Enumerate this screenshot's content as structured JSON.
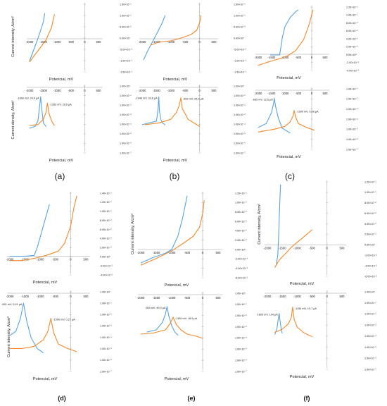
{
  "colors": {
    "blue": "#5ba3dc",
    "orange": "#ee8a2f",
    "axis": "#9a9a9a",
    "text": "#222222"
  },
  "panel_labels": [
    "(a)",
    "(b)",
    "(c)",
    "(d)",
    "(e)",
    "(f)"
  ],
  "chart_data": [
    {
      "panel": "(a)",
      "kind": "intensity",
      "type": "line",
      "ylabel": "Current intensity, A/cm²",
      "xlabel": "Potencial, mV",
      "xticks": [
        "-2000",
        "-1500",
        "-1000",
        "-500",
        "0",
        "500"
      ],
      "yticks": [
        "1.50×10⁻¹",
        "1.00×10⁻¹",
        "5.00×10⁻²",
        "0.00×10⁰",
        "-5.00×10⁻²",
        "-1.00×10⁻¹",
        "-1.50×10⁻¹"
      ],
      "xlim": [
        -2000,
        500
      ],
      "ylim": [
        -0.15,
        0.15
      ],
      "series": [
        {
          "color": "blue",
          "x": [
            -2000,
            -1900,
            -1800,
            -1700,
            -1600,
            -1500,
            -1450
          ],
          "y": [
            -0.105,
            -0.07,
            -0.035,
            0.0,
            0.04,
            0.08,
            0.12
          ]
        },
        {
          "color": "orange",
          "x": [
            -2000,
            -1800,
            -1600,
            -1400,
            -1300,
            -1200,
            -1150,
            -1100
          ],
          "y": [
            -0.11,
            -0.075,
            -0.04,
            -0.005,
            0.025,
            0.055,
            0.085,
            0.115
          ]
        }
      ]
    },
    {
      "panel": "(a)",
      "kind": "density",
      "type": "line",
      "ylabel": "Current density, A/cm²",
      "xlabel": "Potencial, mV",
      "xticks": [
        "-2000",
        "-1500",
        "-1000",
        "-500",
        "0",
        "500"
      ],
      "yticks": [
        "1.00×10⁰",
        "1.00×10⁻¹",
        "1.00×10⁻²",
        "1.00×10⁻³",
        "1.00×10⁻⁴",
        "1.00×10⁻⁵",
        "1.00×10⁻⁶",
        "1.00×10⁻⁷"
      ],
      "xlim": [
        -2000,
        500
      ],
      "ylim": [
        0,
        7
      ],
      "annotations": [
        "-1600 mV, 24,4 µA",
        "-1353 mV, 29,5 µA"
      ],
      "series": [
        {
          "color": "blue",
          "x": [
            -2000,
            -1800,
            -1700,
            -1650,
            -1600,
            -1550,
            -1500,
            -1400
          ],
          "y": [
            2.6,
            2.8,
            3.4,
            4.6,
            6.1,
            4.6,
            3.2,
            2.8
          ]
        },
        {
          "color": "orange",
          "x": [
            -2000,
            -1700,
            -1500,
            -1400,
            -1353,
            -1300,
            -1200,
            -1100
          ],
          "y": [
            2.9,
            3.0,
            3.6,
            4.4,
            5.4,
            4.3,
            3.4,
            2.9
          ]
        }
      ]
    },
    {
      "panel": "(b)",
      "kind": "intensity",
      "type": "line",
      "ylabel": "Current intensity, A/cm²",
      "xlabel": "Potencial, mV",
      "xticks": [
        "-2000",
        "-1500",
        "-1000",
        "-500",
        "0",
        "500"
      ],
      "yticks": [
        "1.50×10⁻¹",
        "1.00×10⁻¹",
        "5.00×10⁻²",
        "0.00×10⁰",
        "-5.00×10⁻²",
        "-1.00×10⁻¹",
        "-1.50×10⁻¹"
      ],
      "xlim": [
        -2000,
        500
      ],
      "ylim": [
        -0.15,
        0.15
      ],
      "series": [
        {
          "color": "blue",
          "x": [
            -1950,
            -1800,
            -1600,
            -1450,
            -1300,
            -1200
          ],
          "y": [
            -0.1,
            -0.055,
            -0.005,
            0.035,
            0.075,
            0.11
          ]
        },
        {
          "color": "orange",
          "x": [
            -1700,
            -1400,
            -1000,
            -600,
            -300,
            -100,
            0,
            50
          ],
          "y": [
            -0.03,
            -0.015,
            -0.01,
            0.005,
            0.02,
            0.04,
            0.075,
            0.11
          ]
        }
      ]
    },
    {
      "panel": "(b)",
      "kind": "density",
      "type": "line",
      "ylabel": "",
      "xlabel": "Potencial, mV",
      "xticks": [
        "-2000",
        "-1500",
        "-1000",
        "-500",
        "0",
        "500"
      ],
      "yticks": [
        "1.00×10⁰",
        "1.00×10⁻¹",
        "1.00×10⁻²",
        "1.00×10⁻³",
        "1.00×10⁻⁴",
        "1.00×10⁻⁵",
        "1.00×10⁻⁶",
        "1.00×10⁻⁷"
      ],
      "xlim": [
        -2000,
        500
      ],
      "ylim": [
        0,
        7
      ],
      "annotations": [
        "-1946 mV, 33,6 µA",
        "-652 mV, 25,9 µA"
      ],
      "series": [
        {
          "color": "blue",
          "x": [
            -2000,
            -1500,
            -1450,
            -1420,
            -1400,
            -1350,
            -1300,
            -1200
          ],
          "y": [
            3.0,
            3.4,
            4.6,
            6.1,
            4.6,
            3.6,
            3.2,
            3.0
          ]
        },
        {
          "color": "orange",
          "x": [
            -1900,
            -1400,
            -1000,
            -800,
            -700,
            -652,
            -600,
            -400,
            -100,
            0
          ],
          "y": [
            3.0,
            3.2,
            3.6,
            4.4,
            5.2,
            6.0,
            4.8,
            3.6,
            3.0,
            2.8
          ]
        }
      ]
    },
    {
      "panel": "(c)",
      "kind": "intensity",
      "type": "line",
      "ylabel": "",
      "xlabel": "Potencial, mV",
      "xticks": [
        "-2000",
        "-1500",
        "-1000",
        "-500",
        "0",
        "500"
      ],
      "yticks": [
        "1.20×10⁻¹",
        "1.00×10⁻¹",
        "8.00×10⁻²",
        "6.00×10⁻²",
        "4.00×10⁻²",
        "2.00×10⁻²",
        "0.00×10⁰",
        "-2.00×10⁻²",
        "-4.00×10⁻²"
      ],
      "xlim": [
        -2000,
        500
      ],
      "ylim": [
        -0.04,
        0.12
      ],
      "series": [
        {
          "color": "blue",
          "x": [
            -1550,
            -1200,
            -1150,
            -1100,
            -1000,
            -800,
            -600,
            -500
          ],
          "y": [
            -0.002,
            -0.002,
            0.02,
            0.045,
            0.075,
            0.1,
            0.115,
            0.12
          ]
        },
        {
          "color": "orange",
          "x": [
            -2000,
            -1800,
            -1500,
            -1200,
            -900,
            -600,
            -300,
            -100,
            50
          ],
          "y": [
            -0.03,
            -0.025,
            -0.018,
            -0.012,
            -0.004,
            0.01,
            0.04,
            0.08,
            0.12
          ]
        }
      ]
    },
    {
      "panel": "(c)",
      "kind": "density",
      "type": "line",
      "ylabel": "",
      "xlabel": "Potencial, mV",
      "xticks": [
        "-2000",
        "-1500",
        "-1000",
        "-500",
        "0",
        "500"
      ],
      "yticks": [
        "1.00×10⁻¹",
        "1.00×10⁻²",
        "1.00×10⁻³",
        "1.00×10⁻⁴",
        "1.00×10⁻⁵",
        "1.00×10⁻⁶",
        "1.00×10⁻⁷"
      ],
      "xlim": [
        -2000,
        500
      ],
      "ylim": [
        0,
        6
      ],
      "annotations": [
        "-655 mV, 12,5 µA",
        "-1399 mV, 0,08 µA"
      ],
      "series": [
        {
          "color": "blue",
          "x": [
            -2000,
            -1700,
            -1500,
            -1420,
            -1399,
            -1350,
            -1250,
            -1100,
            -800
          ],
          "y": [
            2.2,
            2.6,
            3.8,
            4.8,
            5.3,
            4.4,
            3.2,
            2.1,
            1.6
          ]
        },
        {
          "color": "orange",
          "x": [
            -2000,
            -1400,
            -1000,
            -800,
            -700,
            -655,
            -600,
            -500,
            -200,
            100
          ],
          "y": [
            1.7,
            2.0,
            2.3,
            2.8,
            3.4,
            4.0,
            3.3,
            2.6,
            2.2,
            1.9
          ]
        }
      ]
    },
    {
      "panel": "(d)",
      "kind": "intensity",
      "type": "line",
      "ylabel": "",
      "xlabel": "Potencial, mV",
      "xticks": [
        "-2000",
        "-1500",
        "-1000",
        "-500",
        "0",
        "500"
      ],
      "yticks": [
        "1.40×10⁻¹",
        "1.20×10⁻¹",
        "1.00×10⁻¹",
        "8.00×10⁻²",
        "6.00×10⁻²",
        "4.00×10⁻²",
        "2.00×10⁻²",
        "0.00×10⁰",
        "-2.00×10⁻²",
        "-4.00×10⁻²"
      ],
      "xlim": [
        -2000,
        500
      ],
      "ylim": [
        -0.04,
        0.14
      ],
      "series": [
        {
          "color": "blue",
          "x": [
            -2000,
            -1700,
            -1500,
            -1200,
            -1100,
            -1000,
            -900,
            -800,
            -700
          ],
          "y": [
            0.0,
            0.0,
            0.0,
            0.002,
            0.02,
            0.045,
            0.07,
            0.095,
            0.12
          ]
        },
        {
          "color": "orange",
          "x": [
            -2000,
            -1900,
            -1600,
            -1200,
            -800,
            -400,
            -200,
            0,
            100,
            200
          ],
          "y": [
            -0.01,
            -0.01,
            -0.01,
            -0.005,
            0.002,
            0.012,
            0.03,
            0.07,
            0.11,
            0.14
          ]
        }
      ]
    },
    {
      "panel": "(d)",
      "kind": "density",
      "type": "line",
      "ylabel": "Current intensity, A/cm²",
      "xlabel": "Potencial, mV",
      "xticks": [
        "-2000",
        "-1500",
        "-1000",
        "-500",
        "0",
        "500"
      ],
      "yticks": [
        "1.00×10⁰",
        "1.00×10⁻¹",
        "1.00×10⁻²",
        "1.00×10⁻³",
        "1.00×10⁻⁴",
        "1.00×10⁻⁵",
        "1.00×10⁻⁶",
        "1.00×10⁻⁷"
      ],
      "xlim": [
        -2000,
        500
      ],
      "ylim": [
        0,
        7
      ],
      "annotations": [
        "-651 mV, 9,91 µA",
        "-1550 mV, 0,27 µA"
      ],
      "series": [
        {
          "color": "blue",
          "x": [
            -2000,
            -1800,
            -1650,
            -1550,
            -1450,
            -1300,
            -1100,
            -900
          ],
          "y": [
            3.2,
            3.6,
            4.8,
            6.2,
            4.6,
            3.0,
            2.0,
            1.6
          ]
        },
        {
          "color": "orange",
          "x": [
            -2000,
            -1600,
            -1200,
            -900,
            -751,
            -651,
            -550,
            -400,
            -100,
            200
          ],
          "y": [
            2.0,
            2.0,
            2.2,
            2.8,
            3.6,
            4.8,
            3.4,
            2.4,
            2.0,
            1.7
          ]
        }
      ]
    },
    {
      "panel": "(e)",
      "kind": "intensity",
      "type": "line",
      "ylabel": "Current intensity, A/cm²",
      "xlabel": "Potencial, mV",
      "xticks": [
        "-2000",
        "-1500",
        "-1000",
        "-500",
        "0",
        "500"
      ],
      "yticks": [
        "1.20×10⁻¹",
        "1.00×10⁻¹",
        "8.00×10⁻²",
        "6.00×10⁻²",
        "4.00×10⁻²",
        "2.00×10⁻²",
        "0.00×10⁰",
        "-2.00×10⁻²",
        "-4.00×10⁻²",
        "-6.00×10⁻²"
      ],
      "xlim": [
        -2000,
        500
      ],
      "ylim": [
        -0.06,
        0.12
      ],
      "series": [
        {
          "color": "blue",
          "x": [
            -2000,
            -1600,
            -1200,
            -1000,
            -800,
            -650,
            -500
          ],
          "y": [
            -0.03,
            -0.018,
            -0.008,
            0.0,
            0.03,
            0.07,
            0.12
          ]
        },
        {
          "color": "orange",
          "x": [
            -2000,
            -1500,
            -1000,
            -600,
            -300,
            -100,
            0,
            50
          ],
          "y": [
            -0.035,
            -0.02,
            -0.003,
            0.015,
            0.03,
            0.05,
            0.08,
            0.11
          ]
        }
      ]
    },
    {
      "panel": "(e)",
      "kind": "density",
      "type": "line",
      "ylabel": "",
      "xlabel": "Potencial, mV",
      "xticks": [
        "-2000",
        "-1500",
        "-1000",
        "-500",
        "0",
        "500"
      ],
      "yticks": [
        "1.00×10⁰",
        "1.00×10⁻¹",
        "1.00×10⁻²",
        "1.00×10⁻³",
        "1.00×10⁻⁴",
        "1.00×10⁻⁵",
        "1.00×10⁻⁶",
        "1.00×10⁻⁷"
      ],
      "xlim": [
        -2000,
        500
      ],
      "ylim": [
        0,
        7
      ],
      "annotations": [
        "-954 mV, 49,0 µA",
        "-1150 mV, 18,9 µA"
      ],
      "series": [
        {
          "color": "blue",
          "x": [
            -1800,
            -1500,
            -1300,
            -1200,
            -1150,
            -1100,
            -1000,
            -900,
            -800
          ],
          "y": [
            3.6,
            3.8,
            4.5,
            5.3,
            6.0,
            5.2,
            4.2,
            3.6,
            3.3
          ]
        },
        {
          "color": "orange",
          "x": [
            -2000,
            -1600,
            -1200,
            -1050,
            -954,
            -850,
            -700,
            -500,
            -200,
            0
          ],
          "y": [
            3.4,
            3.5,
            3.8,
            4.4,
            5.0,
            4.3,
            3.8,
            3.4,
            3.2,
            3.0
          ]
        }
      ]
    },
    {
      "panel": "(f)",
      "kind": "intensity",
      "type": "line",
      "ylabel": "Current intensity, A/cm²",
      "xlabel": "Potencial, mV",
      "xticks": [
        "-2000",
        "-1500",
        "-1000",
        "-500",
        "0",
        "500"
      ],
      "yticks": [
        "1.20×10⁻¹",
        "1.00×10⁻¹",
        "8.00×10⁻²",
        "6.00×10⁻²",
        "4.00×10⁻²",
        "2.00×10⁻²",
        "0.00×10⁰",
        "-2.00×10⁻²",
        "-4.00×10⁻²",
        "-6.00×10⁻²"
      ],
      "xlim": [
        -2000,
        500
      ],
      "ylim": [
        -0.06,
        0.12
      ],
      "series": [
        {
          "color": "blue",
          "x": [
            -1700,
            -1650,
            -1620,
            -1600,
            -1580,
            -1560
          ],
          "y": [
            -0.04,
            -0.02,
            0.02,
            0.06,
            0.09,
            0.12
          ]
        },
        {
          "color": "orange",
          "x": [
            -1750,
            -1600,
            -1400,
            -1200,
            -1000,
            -800,
            -600,
            -500
          ],
          "y": [
            -0.045,
            -0.03,
            -0.018,
            -0.005,
            0.005,
            0.015,
            0.025,
            0.03
          ]
        }
      ]
    },
    {
      "panel": "(f)",
      "kind": "density",
      "type": "line",
      "ylabel": "",
      "xlabel": "Potencial, mV",
      "xticks": [
        "-2000",
        "-1500",
        "-1000",
        "-500",
        "0",
        "500"
      ],
      "yticks": [
        "1.00×10⁰",
        "1.00×10⁻¹",
        "1.00×10⁻²",
        "1.00×10⁻³",
        "1.00×10⁻⁴",
        "1.00×10⁻⁵",
        "1.00×10⁻⁶",
        "1.00×10⁻⁷"
      ],
      "xlim": [
        -2000,
        500
      ],
      "ylim": [
        0,
        7
      ],
      "annotations": [
        "-1605 mV, 104 µA",
        "-1154 mV, 19,7 µA"
      ],
      "series": [
        {
          "color": "blue",
          "x": [
            -1750,
            -1680,
            -1640,
            -1605,
            -1570,
            -1530,
            -1500
          ],
          "y": [
            3.2,
            3.8,
            4.6,
            5.2,
            4.4,
            3.6,
            3.3
          ]
        },
        {
          "color": "orange",
          "x": [
            -1750,
            -1500,
            -1300,
            -1200,
            -1154,
            -1100,
            -1000,
            -800,
            -600,
            -500
          ],
          "y": [
            3.4,
            3.7,
            4.2,
            4.8,
            5.8,
            4.6,
            3.9,
            3.4,
            3.1,
            3.0
          ]
        }
      ]
    }
  ]
}
